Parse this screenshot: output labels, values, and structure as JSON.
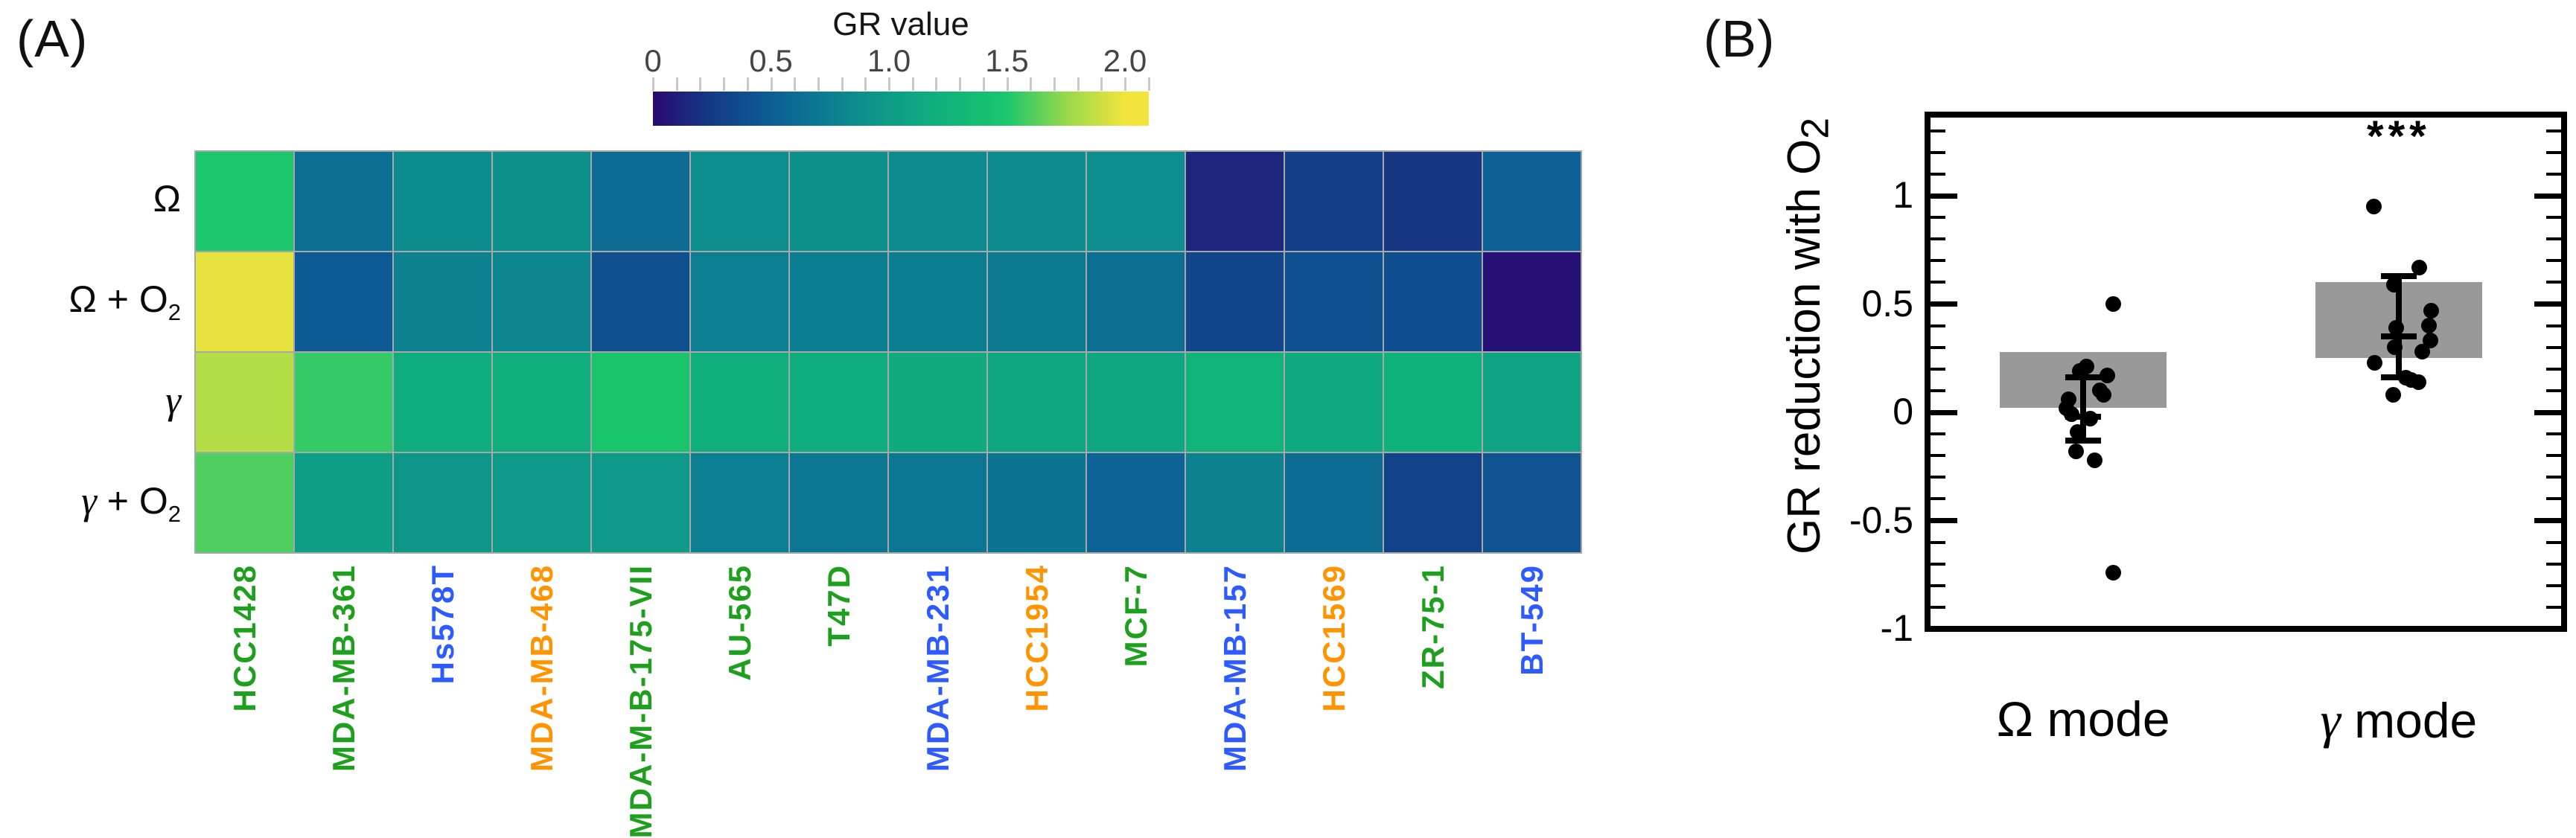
{
  "ui": {
    "panel_a_label": "(A)",
    "panel_b_label": "(B)"
  },
  "chart_data": [
    {
      "type": "heatmap",
      "rows": [
        "Ω",
        "Ω + O2",
        "γ",
        "γ + O2"
      ],
      "row_label_parts": [
        {
          "greek": "Ω",
          "italic": false,
          "rest": "",
          "sub": ""
        },
        {
          "greek": "Ω",
          "italic": false,
          "rest": " + O",
          "sub": "2"
        },
        {
          "greek": "γ",
          "italic": true,
          "rest": "",
          "sub": ""
        },
        {
          "greek": "γ",
          "italic": true,
          "rest": " + O",
          "sub": "2"
        }
      ],
      "columns": [
        "HCC1428",
        "MDA-MB-361",
        "Hs578T",
        "MDA-MB-468",
        "MDA-M-B-175-VII",
        "AU-565",
        "T47D",
        "MDA-MB-231",
        "HCC1954",
        "MCF-7",
        "MDA-MB-157",
        "HCC1569",
        "ZR-75-1",
        "BT-549"
      ],
      "column_color_classes": [
        "green",
        "green",
        "blue",
        "orange",
        "green",
        "green",
        "green",
        "blue",
        "orange",
        "green",
        "blue",
        "orange",
        "green",
        "blue"
      ],
      "label_colors": {
        "green": "#1ea01e",
        "orange": "#ff9400",
        "blue": "#2e5bff"
      },
      "grid_line_color": "#a8a8a8",
      "values": [
        [
          1.5,
          0.62,
          0.86,
          0.89,
          0.6,
          0.87,
          0.9,
          0.85,
          0.85,
          0.87,
          0.14,
          0.28,
          0.22,
          0.52
        ],
        [
          1.97,
          0.47,
          0.78,
          0.82,
          0.4,
          0.76,
          0.74,
          0.74,
          0.72,
          0.62,
          0.33,
          0.41,
          0.39,
          0.04
        ],
        [
          1.83,
          1.55,
          1.17,
          1.19,
          1.48,
          1.2,
          1.18,
          1.16,
          1.12,
          1.12,
          1.26,
          1.14,
          1.24,
          1.08
        ],
        [
          1.6,
          1.01,
          0.95,
          0.98,
          0.97,
          0.75,
          0.69,
          0.69,
          0.67,
          0.53,
          0.78,
          0.6,
          0.3,
          0.42
        ]
      ],
      "color_scale": {
        "title": "GR value",
        "range": [
          0,
          2.1
        ],
        "tick_values": [
          0,
          0.5,
          1.0,
          1.5,
          2.0
        ],
        "tick_labels": [
          "0",
          "0.5",
          "1.0",
          "1.5",
          "2.0"
        ],
        "minor_tick_step": 0.1,
        "stops": [
          [
            0.0,
            "#2a0873"
          ],
          [
            0.25,
            "#133b85"
          ],
          [
            0.5,
            "#0d5e96"
          ],
          [
            0.75,
            "#0c7f92"
          ],
          [
            1.0,
            "#0e9c87"
          ],
          [
            1.25,
            "#10b37a"
          ],
          [
            1.5,
            "#1bc66c"
          ],
          [
            1.75,
            "#97d94b"
          ],
          [
            2.0,
            "#f2e43c"
          ]
        ]
      }
    },
    {
      "type": "scatter",
      "ylabel_pre": "GR reduction with O",
      "ylabel_sub": "2",
      "ylim": [
        -1,
        1.36
      ],
      "ytick_values": [
        1,
        0.5,
        0,
        -0.5,
        -1
      ],
      "ytick_labels": [
        "1",
        "0.5",
        "0",
        "-0.5",
        "-1"
      ],
      "minor_tick_step": 0.1,
      "bar_color": "#999999",
      "categories": [
        "Ω mode",
        "γ mode"
      ],
      "category_parts": [
        {
          "greek": "Ω",
          "italic": false,
          "rest": " mode"
        },
        {
          "greek": "γ",
          "italic": true,
          "rest": " mode"
        }
      ],
      "groups": [
        {
          "bar": {
            "lo": 0.02,
            "hi": 0.28
          },
          "whisker": {
            "lo": -0.13,
            "hi": 0.16,
            "mid": -0.02
          },
          "points": [
            [
              0.5,
              40
            ],
            [
              0.21,
              4
            ],
            [
              0.19,
              -5
            ],
            [
              0.17,
              32
            ],
            [
              0.1,
              22
            ],
            [
              0.08,
              27
            ],
            [
              0.06,
              -20
            ],
            [
              0.02,
              -23
            ],
            [
              -0.01,
              -16
            ],
            [
              -0.03,
              9
            ],
            [
              -0.09,
              -8
            ],
            [
              -0.18,
              -10
            ],
            [
              -0.22,
              15
            ],
            [
              -0.74,
              40
            ]
          ]
        },
        {
          "bar": {
            "lo": 0.25,
            "hi": 0.6
          },
          "whisker": {
            "lo": 0.16,
            "hi": 0.63,
            "mid": 0.35
          },
          "points": [
            [
              0.95,
              -33
            ],
            [
              0.67,
              28
            ],
            [
              0.59,
              -6
            ],
            [
              0.47,
              44
            ],
            [
              0.4,
              41
            ],
            [
              0.39,
              -3
            ],
            [
              0.33,
              43
            ],
            [
              0.3,
              -5
            ],
            [
              0.28,
              32
            ],
            [
              0.23,
              -32
            ],
            [
              0.16,
              10
            ],
            [
              0.15,
              17
            ],
            [
              0.14,
              27
            ],
            [
              0.08,
              -7
            ]
          ]
        }
      ],
      "significance": {
        "group_index": 1,
        "text": "***"
      }
    }
  ]
}
